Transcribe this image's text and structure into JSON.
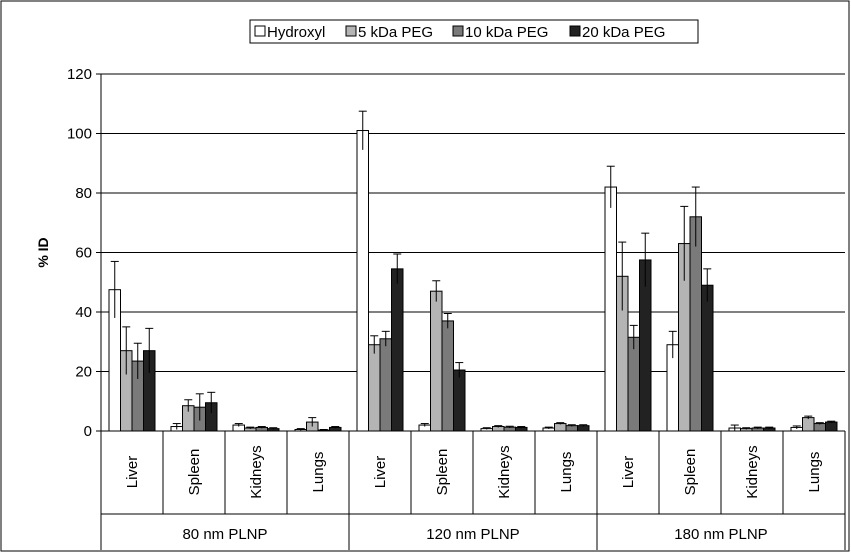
{
  "chart_data": {
    "type": "bar",
    "title": "",
    "xlabel": "",
    "ylabel": "% ID",
    "ylim": [
      0,
      120
    ],
    "yticks": [
      0,
      20,
      40,
      60,
      80,
      100,
      120
    ],
    "grid": true,
    "legend_position": "top-center",
    "groups": [
      {
        "label": "80 nm PLNP"
      },
      {
        "label": "120 nm PLNP"
      },
      {
        "label": "180 nm PLNP"
      }
    ],
    "organs": [
      "Liver",
      "Spleen",
      "Kidneys",
      "Lungs"
    ],
    "categories": [
      "Liver",
      "Spleen",
      "Kidneys",
      "Lungs",
      "Liver",
      "Spleen",
      "Kidneys",
      "Lungs",
      "Liver",
      "Spleen",
      "Kidneys",
      "Lungs"
    ],
    "series": [
      {
        "name": "Hydroxyl",
        "color": "#ffffff",
        "values": [
          47.5,
          1.5,
          2.0,
          0.5,
          101,
          2.0,
          0.8,
          1.0,
          82,
          29,
          1.0,
          1.2
        ],
        "errors": [
          9.5,
          1.0,
          0.5,
          0.3,
          6.5,
          0.5,
          0.3,
          0.3,
          7,
          4.5,
          1.0,
          0.5
        ]
      },
      {
        "name": "5 kDa PEG",
        "color": "#b4b4b4",
        "values": [
          27,
          8.5,
          1.0,
          3.0,
          29,
          47,
          1.5,
          2.5,
          52,
          63,
          0.8,
          4.5
        ],
        "errors": [
          8,
          2.0,
          0.3,
          1.5,
          3,
          3.5,
          0.3,
          0.3,
          11.5,
          12.5,
          0.3,
          0.5
        ]
      },
      {
        "name": "10 kDa PEG",
        "color": "#7a7a7a",
        "values": [
          23.5,
          8.0,
          1.2,
          0.3,
          31,
          37,
          1.3,
          1.8,
          31.5,
          72,
          1.0,
          2.5
        ],
        "errors": [
          6,
          4.5,
          0.3,
          0.2,
          2.5,
          2.5,
          0.3,
          0.3,
          4,
          10,
          0.3,
          0.3
        ]
      },
      {
        "name": "20 kDa PEG",
        "color": "#222222",
        "values": [
          27,
          9.5,
          0.8,
          1.2,
          54.5,
          20.5,
          1.2,
          1.8,
          57.5,
          49,
          1.0,
          3.0
        ],
        "errors": [
          7.5,
          3.5,
          0.3,
          0.3,
          5,
          2.5,
          0.3,
          0.3,
          9,
          5.5,
          0.3,
          0.3
        ]
      }
    ]
  }
}
